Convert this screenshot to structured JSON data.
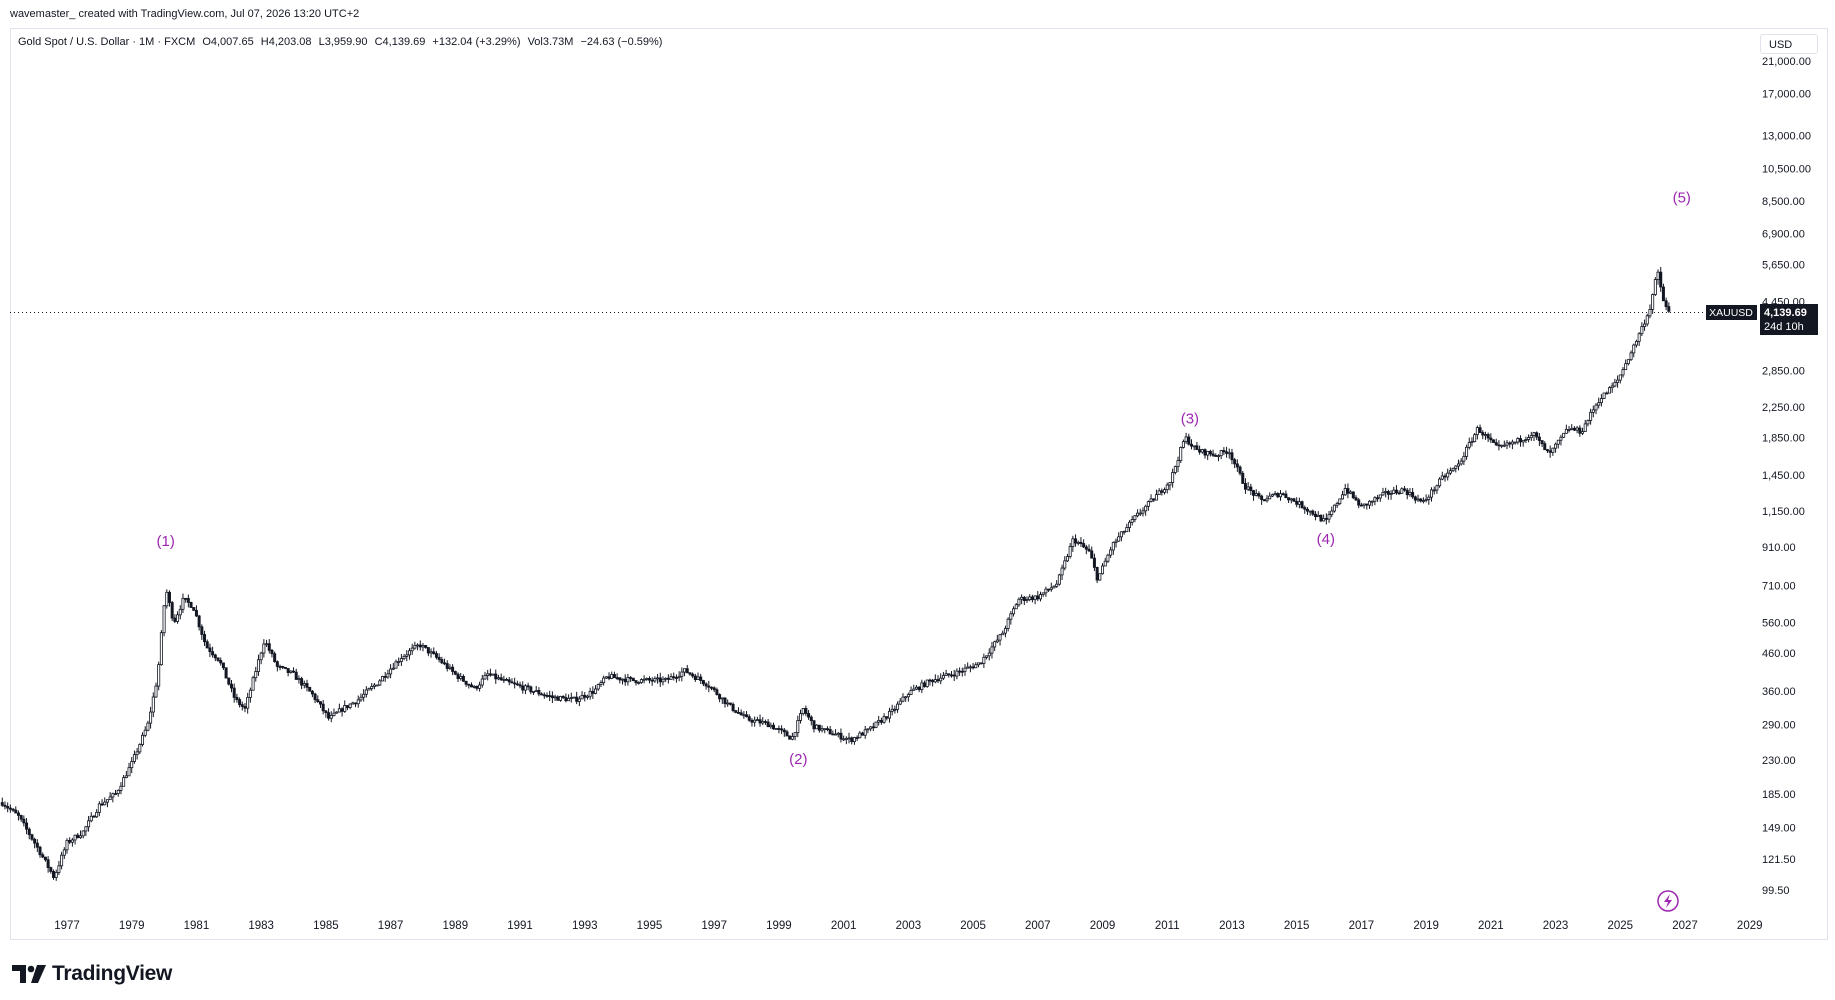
{
  "header": {
    "credit": "wavemaster_ created with TradingView.com, Jul 07, 2026 13:20 UTC+2"
  },
  "legend": {
    "symbol": "Gold Spot / U.S. Dollar · 1M · FXCM",
    "open": "O4,007.65",
    "high": "H4,203.08",
    "low": "L3,959.90",
    "close": "C4,139.69",
    "change": "+132.04 (+3.29%)",
    "volume": "Vol3.73M",
    "volume_change": "−24.63 (−0.59%)"
  },
  "currency_label": "USD",
  "price_tag": {
    "symbol": "XAUUSD",
    "price": "4,139.69",
    "countdown": "24d 10h"
  },
  "footer": {
    "brand": "TradingView"
  },
  "colors": {
    "wave_label": "#9c27b0",
    "candle": "#131722",
    "grid_border": "#e0e3eb",
    "tag_bg": "#131722"
  },
  "chart_data": {
    "type": "candlestick",
    "scale": "log",
    "interval": "1M",
    "y_ticks": [
      21000,
      17000,
      13000,
      10500,
      8500,
      6900,
      5650,
      4450,
      2850,
      2250,
      1850,
      1450,
      1150,
      910,
      710,
      560,
      460,
      360,
      290,
      230,
      185,
      149,
      121.5,
      99.5
    ],
    "y_tick_labels": [
      "21,000.00",
      "17,000.00",
      "13,000.00",
      "10,500.00",
      "8,500.00",
      "6,900.00",
      "5,650.00",
      "4,450.00",
      "2,850.00",
      "2,250.00",
      "1,850.00",
      "1,450.00",
      "1,150.00",
      "910.00",
      "710.00",
      "560.00",
      "460.00",
      "360.00",
      "290.00",
      "230.00",
      "185.00",
      "149.00",
      "121.50",
      "99.50"
    ],
    "x_ticks": [
      "1977",
      "1979",
      "1981",
      "1983",
      "1985",
      "1987",
      "1989",
      "1991",
      "1993",
      "1995",
      "1997",
      "1999",
      "2001",
      "2003",
      "2005",
      "2007",
      "2009",
      "2011",
      "2013",
      "2015",
      "2017",
      "2019",
      "2021",
      "2023",
      "2025",
      "2027",
      "2029"
    ],
    "last_price": 4139.69,
    "price_path": [
      [
        1975.0,
        175
      ],
      [
        1975.5,
        160
      ],
      [
        1976.0,
        135
      ],
      [
        1976.6,
        108
      ],
      [
        1977.0,
        135
      ],
      [
        1977.5,
        145
      ],
      [
        1978.0,
        172
      ],
      [
        1978.5,
        185
      ],
      [
        1979.0,
        225
      ],
      [
        1979.5,
        290
      ],
      [
        1979.8,
        395
      ],
      [
        1980.05,
        700
      ],
      [
        1980.3,
        560
      ],
      [
        1980.6,
        650
      ],
      [
        1980.9,
        620
      ],
      [
        1981.3,
        480
      ],
      [
        1981.7,
        440
      ],
      [
        1982.2,
        340
      ],
      [
        1982.5,
        320
      ],
      [
        1983.1,
        500
      ],
      [
        1983.5,
        420
      ],
      [
        1984.0,
        400
      ],
      [
        1984.6,
        350
      ],
      [
        1985.1,
        300
      ],
      [
        1985.5,
        320
      ],
      [
        1986.0,
        340
      ],
      [
        1986.6,
        380
      ],
      [
        1987.3,
        445
      ],
      [
        1987.9,
        485
      ],
      [
        1988.5,
        440
      ],
      [
        1989.0,
        400
      ],
      [
        1989.6,
        365
      ],
      [
        1990.0,
        400
      ],
      [
        1990.6,
        380
      ],
      [
        1991.2,
        365
      ],
      [
        1992.0,
        345
      ],
      [
        1992.7,
        340
      ],
      [
        1993.3,
        360
      ],
      [
        1993.7,
        395
      ],
      [
        1994.5,
        385
      ],
      [
        1995.5,
        385
      ],
      [
        1996.1,
        410
      ],
      [
        1996.8,
        375
      ],
      [
        1997.5,
        325
      ],
      [
        1998.0,
        300
      ],
      [
        1998.7,
        290
      ],
      [
        1999.4,
        265
      ],
      [
        1999.75,
        320
      ],
      [
        2000.1,
        285
      ],
      [
        2000.6,
        275
      ],
      [
        2001.2,
        262
      ],
      [
        2001.8,
        280
      ],
      [
        2002.5,
        315
      ],
      [
        2003.0,
        355
      ],
      [
        2003.7,
        385
      ],
      [
        2004.5,
        405
      ],
      [
        2005.2,
        430
      ],
      [
        2005.9,
        520
      ],
      [
        2006.4,
        650
      ],
      [
        2007.0,
        660
      ],
      [
        2007.6,
        720
      ],
      [
        2008.1,
        960
      ],
      [
        2008.6,
        880
      ],
      [
        2008.85,
        740
      ],
      [
        2009.3,
        920
      ],
      [
        2010.0,
        1100
      ],
      [
        2010.6,
        1250
      ],
      [
        2011.1,
        1400
      ],
      [
        2011.55,
        1850
      ],
      [
        2011.9,
        1700
      ],
      [
        2012.5,
        1650
      ],
      [
        2012.9,
        1700
      ],
      [
        2013.4,
        1350
      ],
      [
        2013.9,
        1230
      ],
      [
        2014.5,
        1290
      ],
      [
        2015.1,
        1200
      ],
      [
        2015.9,
        1070
      ],
      [
        2016.5,
        1330
      ],
      [
        2017.0,
        1180
      ],
      [
        2017.7,
        1280
      ],
      [
        2018.3,
        1320
      ],
      [
        2018.9,
        1210
      ],
      [
        2019.5,
        1420
      ],
      [
        2020.0,
        1550
      ],
      [
        2020.6,
        1960
      ],
      [
        2021.2,
        1720
      ],
      [
        2021.8,
        1800
      ],
      [
        2022.3,
        1900
      ],
      [
        2022.8,
        1650
      ],
      [
        2023.4,
        1960
      ],
      [
        2023.8,
        1920
      ],
      [
        2024.3,
        2330
      ],
      [
        2024.9,
        2650
      ],
      [
        2025.4,
        3300
      ],
      [
        2025.9,
        4200
      ],
      [
        2026.15,
        5400
      ],
      [
        2026.35,
        4400
      ],
      [
        2026.5,
        4139.69
      ]
    ],
    "annotations": [
      {
        "label": "(1)",
        "x": 1980.05,
        "price": 870,
        "position": "above"
      },
      {
        "label": "(2)",
        "x": 1999.6,
        "price": 252,
        "position": "below"
      },
      {
        "label": "(3)",
        "x": 2011.7,
        "price": 1920,
        "position": "above"
      },
      {
        "label": "(4)",
        "x": 2015.9,
        "price": 1045,
        "position": "below"
      },
      {
        "label": "(5)",
        "x": 2026.9,
        "price": 8000,
        "position": "above"
      }
    ]
  }
}
